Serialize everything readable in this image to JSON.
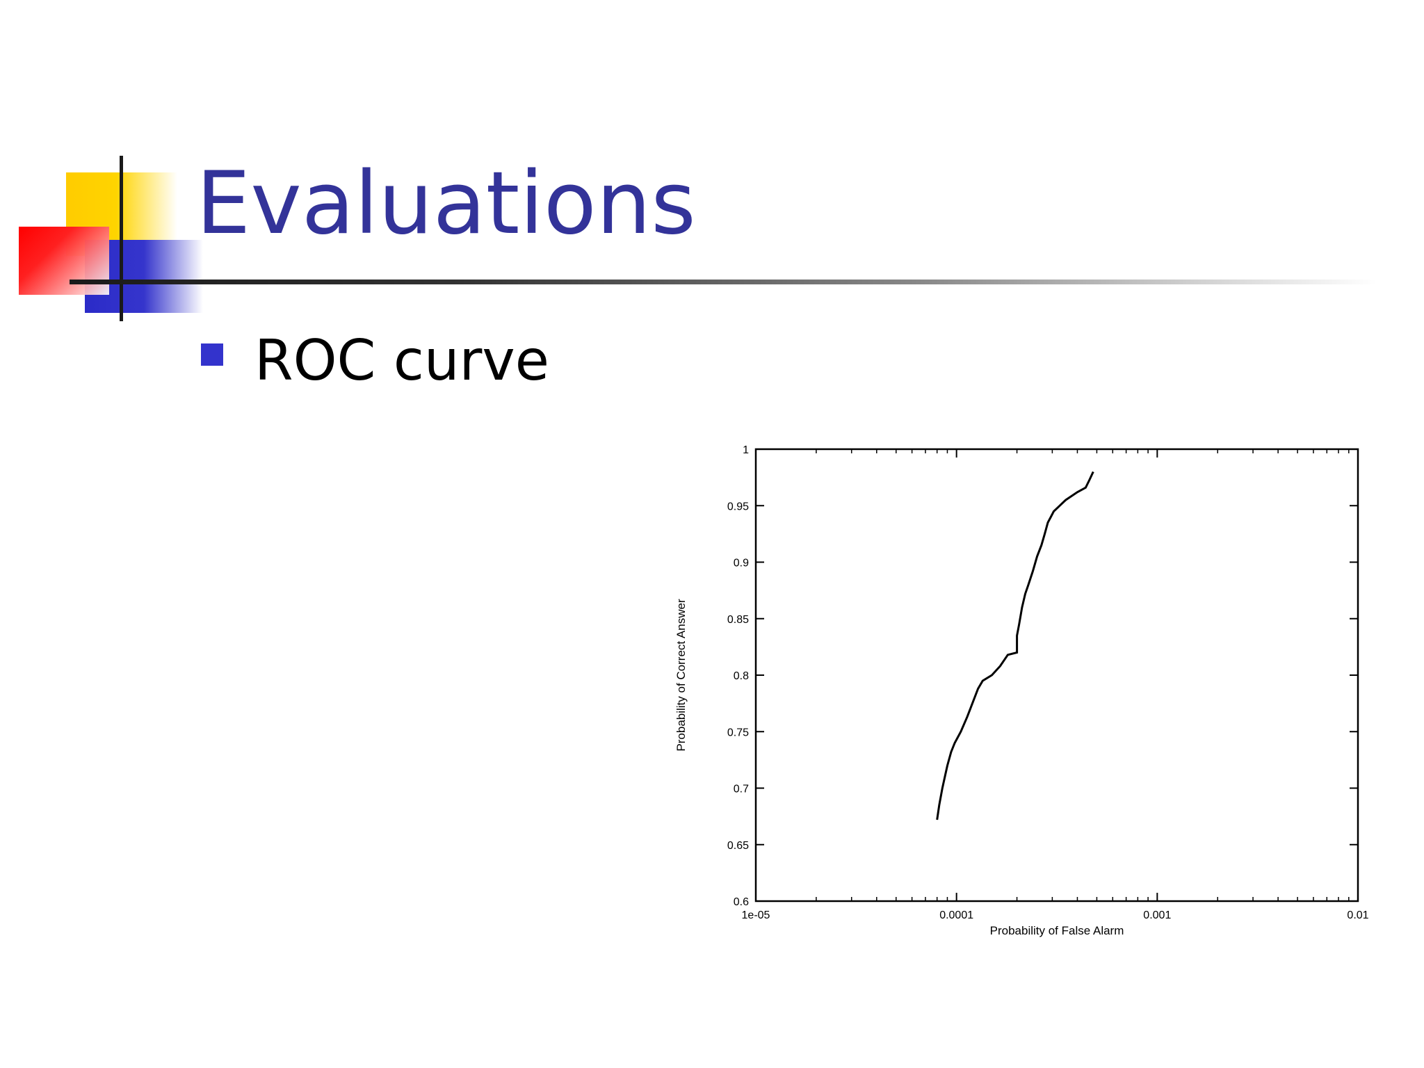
{
  "slide": {
    "title": "Evaluations",
    "bullets": [
      {
        "text": "ROC curve"
      }
    ]
  },
  "colors": {
    "title": "#333399",
    "bullet": "#3333cc",
    "deco_yellow": "#ffcc00",
    "deco_blue": "#2b2bc8",
    "deco_red": "#ff0000",
    "line": "#000000"
  },
  "chart_data": {
    "type": "line",
    "title": "",
    "xlabel": "Probability of False Alarm",
    "ylabel": "Probability of Correct Answer",
    "xscale": "log",
    "xlim": [
      1e-05,
      0.01
    ],
    "ylim": [
      0.6,
      1.0
    ],
    "xticks": [
      "1e-05",
      "0.0001",
      "0.001",
      "0.01"
    ],
    "yticks": [
      "0.6",
      "0.65",
      "0.7",
      "0.75",
      "0.8",
      "0.85",
      "0.9",
      "0.95",
      "1"
    ],
    "grid": false,
    "legend": "none",
    "series": [
      {
        "x": [
          8e-05,
          8.2e-05,
          8.5e-05,
          8.8e-05,
          9e-05,
          9.4e-05,
          9.8e-05,
          0.000105,
          0.000113,
          0.00012,
          0.000128,
          0.000135,
          0.00015,
          0.000165,
          0.00018,
          0.0002,
          0.0002,
          0.000205,
          0.000212,
          0.00022,
          0.000228,
          0.00024,
          0.000252,
          0.000265,
          0.000275,
          0.000285,
          0.000295,
          0.000305,
          0.00035,
          0.0004,
          0.00044,
          0.00046,
          0.00048
        ],
        "y": [
          0.672,
          0.685,
          0.7,
          0.712,
          0.72,
          0.732,
          0.74,
          0.75,
          0.763,
          0.775,
          0.788,
          0.795,
          0.8,
          0.808,
          0.818,
          0.82,
          0.835,
          0.845,
          0.86,
          0.872,
          0.88,
          0.892,
          0.905,
          0.915,
          0.925,
          0.935,
          0.94,
          0.945,
          0.955,
          0.962,
          0.966,
          0.973,
          0.98
        ]
      }
    ]
  }
}
